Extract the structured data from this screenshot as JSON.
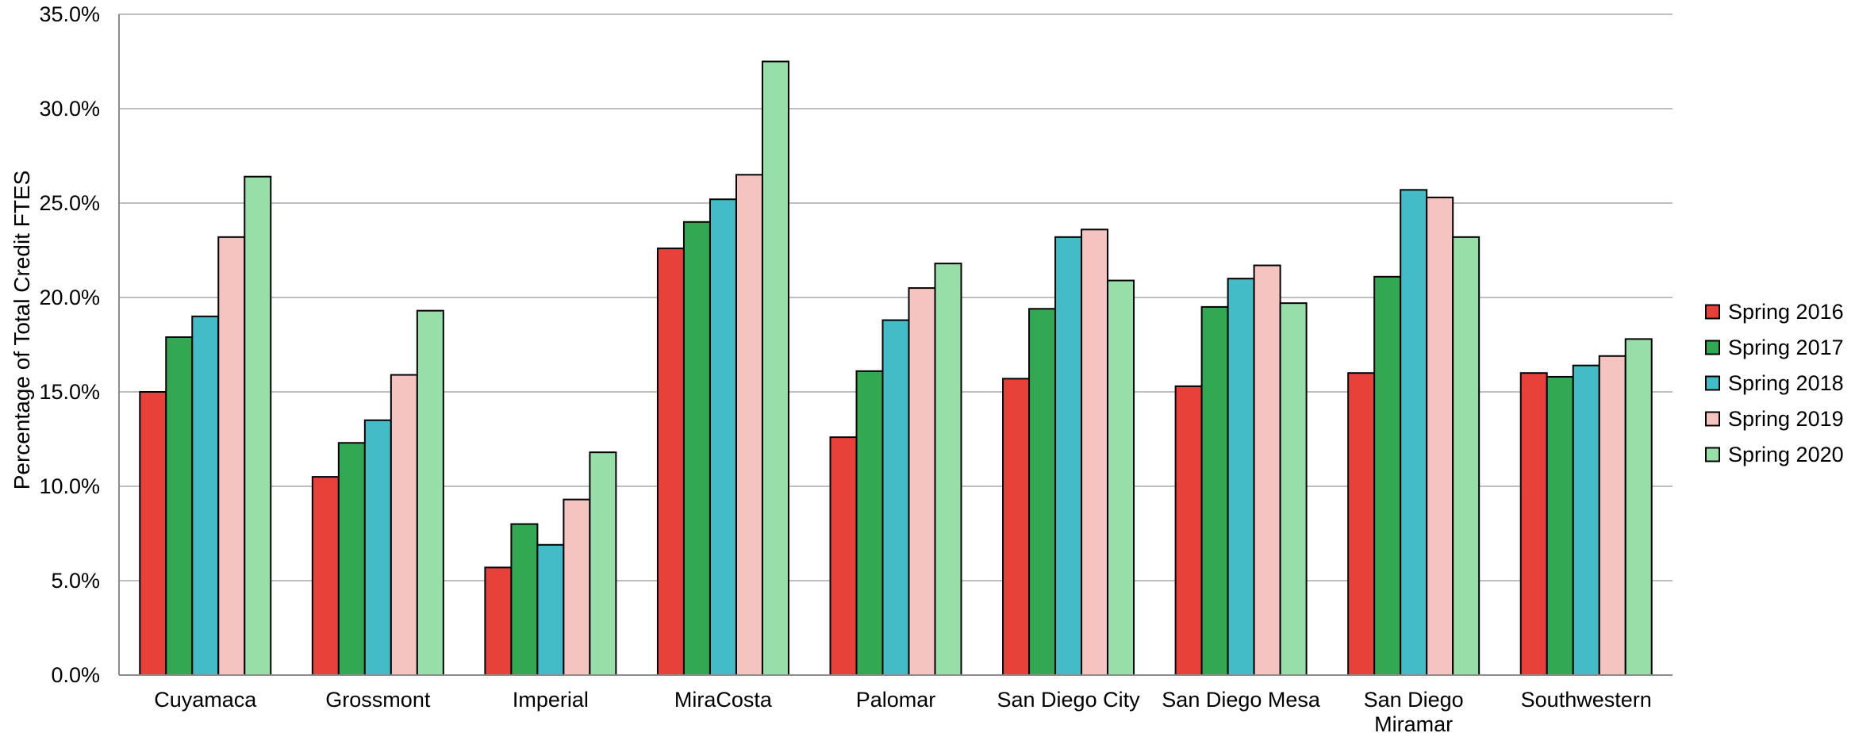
{
  "chart_data": {
    "type": "bar",
    "ylabel": "Percentage of Total Credit FTES",
    "xlabel": "",
    "ylim": [
      0,
      35
    ],
    "y_tick_labels": [
      "0.0%",
      "5.0%",
      "10.0%",
      "15.0%",
      "20.0%",
      "25.0%",
      "30.0%",
      "35.0%"
    ],
    "grid": true,
    "legend_position": "right",
    "categories": [
      [
        "Cuyamaca"
      ],
      [
        "Grossmont"
      ],
      [
        "Imperial"
      ],
      [
        "MiraCosta"
      ],
      [
        "Palomar"
      ],
      [
        "San Diego City"
      ],
      [
        "San Diego Mesa"
      ],
      [
        "San Diego",
        "Miramar"
      ],
      [
        "Southwestern"
      ]
    ],
    "series": [
      {
        "name": "Spring 2016",
        "color": "#e8413a",
        "values": [
          15.0,
          10.5,
          5.7,
          22.6,
          12.6,
          15.7,
          15.3,
          16.0,
          16.0
        ]
      },
      {
        "name": "Spring 2017",
        "color": "#33a852",
        "values": [
          17.9,
          12.3,
          8.0,
          24.0,
          16.1,
          19.4,
          19.5,
          21.1,
          15.8
        ]
      },
      {
        "name": "Spring 2018",
        "color": "#43bcc8",
        "values": [
          19.0,
          13.5,
          6.9,
          25.2,
          18.8,
          23.2,
          21.0,
          25.7,
          16.4
        ]
      },
      {
        "name": "Spring 2019",
        "color": "#f6c4c0",
        "values": [
          23.2,
          15.9,
          9.3,
          26.5,
          20.5,
          23.6,
          21.7,
          25.3,
          16.9
        ]
      },
      {
        "name": "Spring 2020",
        "color": "#97dea8",
        "values": [
          26.4,
          19.3,
          11.8,
          32.5,
          21.8,
          20.9,
          19.7,
          23.2,
          17.8
        ]
      }
    ]
  }
}
